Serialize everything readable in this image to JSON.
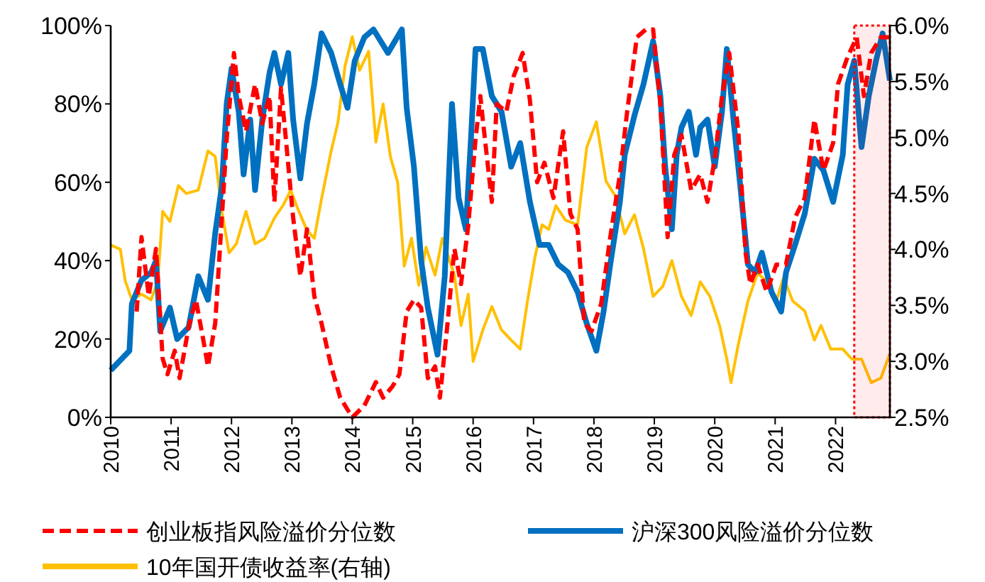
{
  "chart_data": {
    "type": "line",
    "xlim": [
      2010,
      2022.9
    ],
    "xticks": [
      2010,
      2011,
      2012,
      2013,
      2014,
      2015,
      2016,
      2017,
      2018,
      2019,
      2020,
      2021,
      2022
    ],
    "ylim": [
      0,
      100
    ],
    "yticks": [
      {
        "value": 0,
        "label": "0%"
      },
      {
        "value": 20,
        "label": "20%"
      },
      {
        "value": 40,
        "label": "40%"
      },
      {
        "value": 60,
        "label": "60%"
      },
      {
        "value": 80,
        "label": "80%"
      },
      {
        "value": 100,
        "label": "100%"
      }
    ],
    "y2lim": [
      2.5,
      6.0
    ],
    "y2ticks": [
      {
        "value": 2.5,
        "label": "2.5%"
      },
      {
        "value": 3.0,
        "label": "3.0%"
      },
      {
        "value": 3.5,
        "label": "3.5%"
      },
      {
        "value": 4.0,
        "label": "4.0%"
      },
      {
        "value": 4.5,
        "label": "4.5%"
      },
      {
        "value": 5.0,
        "label": "5.0%"
      },
      {
        "value": 5.5,
        "label": "5.5%"
      },
      {
        "value": 6.0,
        "label": "6.0%"
      }
    ],
    "grid": false,
    "legend": "bottom",
    "bands": [
      {
        "axis": "x",
        "from": 2022.31,
        "to": 2022.9,
        "color": "#ff0000"
      }
    ],
    "series": [
      {
        "name": "创业板指风险溢价分位数",
        "color": "#ff0000",
        "line_style": "dashed",
        "x": [
          2010.43,
          2010.51,
          2010.63,
          2010.75,
          2010.86,
          2010.94,
          2011.06,
          2011.14,
          2011.29,
          2011.41,
          2011.53,
          2011.61,
          2011.73,
          2011.8,
          2011.92,
          2012.04,
          2012.12,
          2012.24,
          2012.39,
          2012.51,
          2012.63,
          2012.71,
          2012.82,
          2012.9,
          2013.02,
          2013.14,
          2013.25,
          2013.37,
          2013.49,
          2013.65,
          2013.8,
          2014.0,
          2014.2,
          2014.39,
          2014.51,
          2014.67,
          2014.78,
          2014.9,
          2015.02,
          2015.14,
          2015.25,
          2015.37,
          2015.45,
          2015.57,
          2015.69,
          2015.8,
          2015.92,
          2016.04,
          2016.12,
          2016.16,
          2016.31,
          2016.39,
          2016.55,
          2016.67,
          2016.82,
          2016.94,
          2017.06,
          2017.18,
          2017.33,
          2017.49,
          2017.61,
          2017.73,
          2017.84,
          2017.96,
          2018.12,
          2018.27,
          2018.43,
          2018.55,
          2018.71,
          2018.86,
          2018.98,
          2019.1,
          2019.22,
          2019.33,
          2019.45,
          2019.61,
          2019.76,
          2019.88,
          2020.0,
          2020.12,
          2020.24,
          2020.39,
          2020.51,
          2020.59,
          2020.71,
          2020.86,
          2021.02,
          2021.18,
          2021.33,
          2021.49,
          2021.65,
          2021.8,
          2021.96,
          2022.04,
          2022.2,
          2022.35,
          2022.47,
          2022.59,
          2022.75,
          2022.9
        ],
        "values": [
          27,
          46,
          31,
          43,
          15,
          11,
          17,
          10,
          23,
          30,
          20,
          13,
          24,
          41,
          71,
          93,
          82,
          73,
          85,
          75,
          82,
          55,
          84,
          71,
          51,
          36,
          48,
          31,
          24,
          13,
          5,
          0,
          3,
          9,
          5,
          8,
          11,
          27,
          30,
          28,
          10,
          13,
          5,
          23,
          43,
          34,
          49,
          71,
          82,
          76,
          55,
          80,
          78,
          87,
          93,
          81,
          60,
          65,
          56,
          73,
          52,
          48,
          24,
          22,
          29,
          46,
          62,
          78,
          97,
          99,
          99,
          80,
          46,
          67,
          72,
          58,
          62,
          55,
          66,
          82,
          93,
          73,
          42,
          34,
          39,
          32,
          39,
          39,
          51,
          56,
          76,
          63,
          70,
          85,
          92,
          97,
          82,
          93,
          97,
          97
        ]
      },
      {
        "name": "沪深300风险溢价分位数",
        "color": "#0070c0",
        "x": [
          2010.0,
          2010.31,
          2010.35,
          2010.51,
          2010.67,
          2010.75,
          2010.82,
          2010.98,
          2011.1,
          2011.29,
          2011.45,
          2011.61,
          2011.73,
          2011.84,
          2011.92,
          2012.0,
          2012.12,
          2012.2,
          2012.31,
          2012.39,
          2012.51,
          2012.63,
          2012.71,
          2012.82,
          2012.94,
          2013.02,
          2013.14,
          2013.25,
          2013.37,
          2013.49,
          2013.65,
          2013.8,
          2013.92,
          2014.04,
          2014.2,
          2014.35,
          2014.59,
          2014.82,
          2014.9,
          2015.02,
          2015.14,
          2015.25,
          2015.41,
          2015.53,
          2015.65,
          2015.76,
          2015.88,
          2015.96,
          2016.04,
          2016.16,
          2016.31,
          2016.47,
          2016.63,
          2016.78,
          2016.94,
          2017.1,
          2017.25,
          2017.41,
          2017.57,
          2017.73,
          2017.88,
          2018.04,
          2018.16,
          2018.27,
          2018.43,
          2018.51,
          2018.67,
          2018.82,
          2018.98,
          2019.1,
          2019.18,
          2019.29,
          2019.37,
          2019.45,
          2019.57,
          2019.69,
          2019.76,
          2019.88,
          2020.0,
          2020.12,
          2020.2,
          2020.31,
          2020.43,
          2020.55,
          2020.67,
          2020.78,
          2020.94,
          2021.1,
          2021.18,
          2021.33,
          2021.49,
          2021.65,
          2021.8,
          2021.96,
          2022.12,
          2022.2,
          2022.31,
          2022.43,
          2022.55,
          2022.67,
          2022.78,
          2022.9
        ],
        "values": [
          12,
          17,
          29,
          35,
          37,
          40,
          22,
          28,
          20,
          23,
          36,
          30,
          47,
          59,
          80,
          89,
          78,
          62,
          76,
          58,
          76,
          88,
          93,
          85,
          93,
          76,
          61,
          75,
          85,
          98,
          93,
          85,
          79,
          91,
          97,
          99,
          93,
          99,
          79,
          64,
          40,
          28,
          16,
          36,
          80,
          56,
          48,
          70,
          94,
          94,
          82,
          78,
          64,
          70,
          55,
          44,
          44,
          39,
          37,
          32,
          24,
          17,
          27,
          39,
          55,
          67,
          77,
          85,
          96,
          82,
          64,
          48,
          67,
          74,
          78,
          67,
          74,
          76,
          64,
          78,
          94,
          76,
          58,
          39,
          37,
          42,
          32,
          27,
          37,
          44,
          52,
          66,
          63,
          55,
          67,
          85,
          91,
          69,
          82,
          91,
          98,
          86
        ]
      },
      {
        "name": "10年国开债收益率(右轴)",
        "color": "#ffc000",
        "axis": "y2",
        "x": [
          2010.0,
          2010.16,
          2010.24,
          2010.35,
          2010.51,
          2010.67,
          2010.78,
          2010.86,
          2010.98,
          2011.12,
          2011.25,
          2011.45,
          2011.61,
          2011.73,
          2011.84,
          2011.96,
          2012.08,
          2012.24,
          2012.39,
          2012.55,
          2012.71,
          2012.86,
          2012.98,
          2013.1,
          2013.25,
          2013.37,
          2013.49,
          2013.65,
          2013.76,
          2013.88,
          2014.0,
          2014.12,
          2014.27,
          2014.39,
          2014.51,
          2014.63,
          2014.75,
          2014.86,
          2014.98,
          2015.1,
          2015.22,
          2015.37,
          2015.49,
          2015.69,
          2015.8,
          2015.92,
          2016.0,
          2016.16,
          2016.31,
          2016.47,
          2016.63,
          2016.78,
          2016.9,
          2017.02,
          2017.14,
          2017.25,
          2017.37,
          2017.53,
          2017.73,
          2017.88,
          2018.04,
          2018.2,
          2018.35,
          2018.51,
          2018.67,
          2018.82,
          2018.98,
          2019.14,
          2019.29,
          2019.45,
          2019.61,
          2019.76,
          2019.92,
          2020.08,
          2020.2,
          2020.27,
          2020.39,
          2020.55,
          2020.71,
          2020.86,
          2021.02,
          2021.14,
          2021.29,
          2021.49,
          2021.65,
          2021.76,
          2021.92,
          2022.12,
          2022.27,
          2022.43,
          2022.59,
          2022.75,
          2022.9
        ],
        "values": [
          4.04,
          4.0,
          3.72,
          3.55,
          3.6,
          3.55,
          3.72,
          4.34,
          4.25,
          4.57,
          4.5,
          4.53,
          4.88,
          4.83,
          4.34,
          3.97,
          4.05,
          4.34,
          4.05,
          4.1,
          4.28,
          4.4,
          4.53,
          4.36,
          4.17,
          4.1,
          4.45,
          4.88,
          5.13,
          5.64,
          5.9,
          5.6,
          5.77,
          4.96,
          5.3,
          4.83,
          4.6,
          3.85,
          4.1,
          3.68,
          4.02,
          3.77,
          4.1,
          3.77,
          3.32,
          3.6,
          3.0,
          3.28,
          3.49,
          3.28,
          3.19,
          3.11,
          3.54,
          3.92,
          4.22,
          4.18,
          4.39,
          4.26,
          4.22,
          4.91,
          5.14,
          4.61,
          4.48,
          4.14,
          4.31,
          4.01,
          3.58,
          3.67,
          3.9,
          3.58,
          3.41,
          3.71,
          3.58,
          3.32,
          3.02,
          2.81,
          3.15,
          3.54,
          3.79,
          3.71,
          3.54,
          3.75,
          3.54,
          3.45,
          3.19,
          3.32,
          3.11,
          3.11,
          3.02,
          3.02,
          2.81,
          2.85,
          3.07
        ]
      }
    ]
  }
}
